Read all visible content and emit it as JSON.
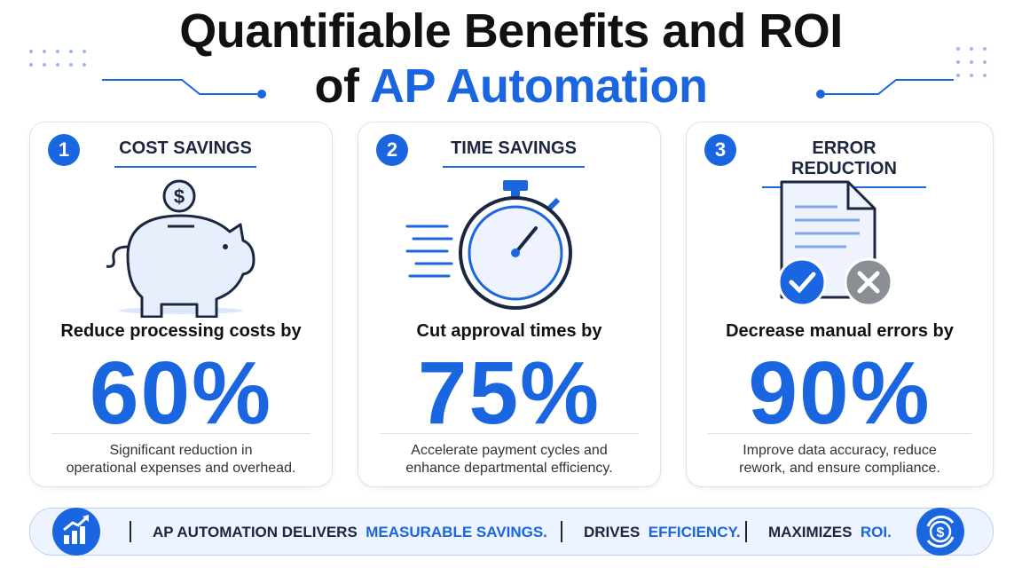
{
  "title": {
    "line1": "Quantifiable Benefits and ROI",
    "line2_prefix": "of",
    "line2_highlight": "AP Automation"
  },
  "cards": [
    {
      "number": "1",
      "heading": "COST SAVINGS",
      "lead": "Reduce processing costs by",
      "stat": "60%",
      "description": [
        "Significant reduction in",
        "operational expenses and overhead."
      ]
    },
    {
      "number": "2",
      "heading": "TIME SAVINGS",
      "lead": "Cut approval times by",
      "stat": "75%",
      "description": [
        "Accelerate payment cycles and",
        "enhance departmental efficiency."
      ]
    },
    {
      "number": "3",
      "heading": "ERROR REDUCTION",
      "lead": "Decrease manual errors by",
      "stat": "90%",
      "description": [
        "Improve data accuracy, reduce",
        "rework, and ensure compliance."
      ]
    }
  ],
  "footer": [
    {
      "text": "AP AUTOMATION DELIVERS",
      "highlight": "MEASURABLE SAVINGS."
    },
    {
      "text": "DRIVES",
      "highlight": "EFFICIENCY."
    },
    {
      "text": "MAXIMIZES",
      "highlight": "ROI."
    }
  ]
}
